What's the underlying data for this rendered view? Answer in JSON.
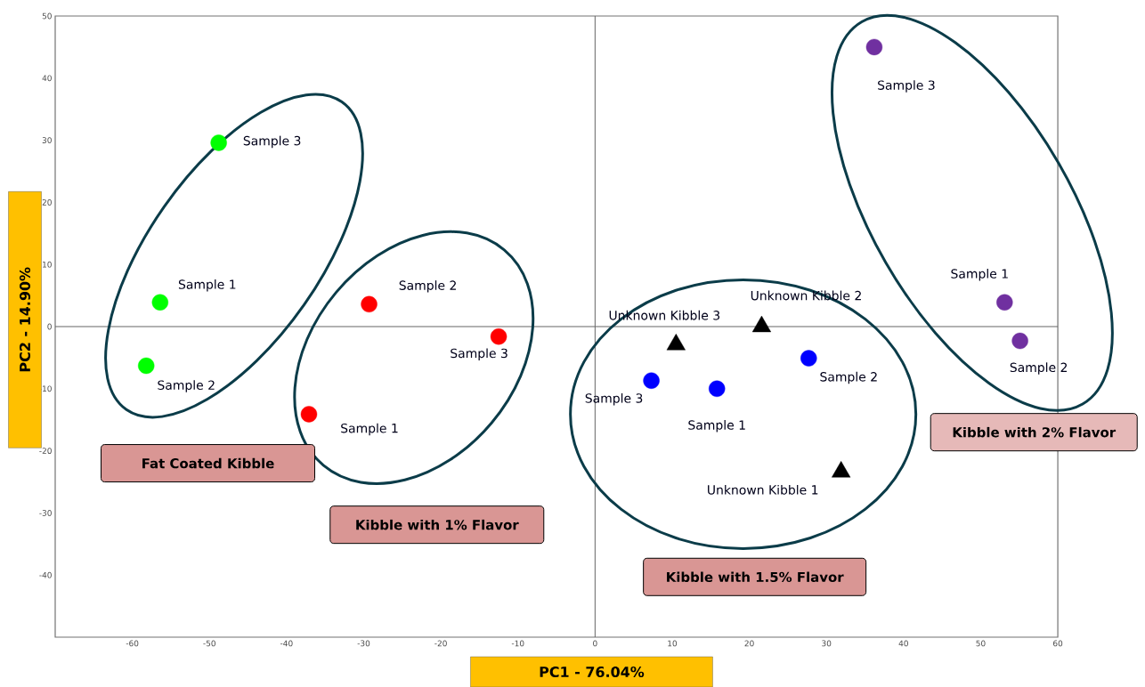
{
  "chart_data": {
    "type": "scatter",
    "xlabel": "PC1 - 76.04%",
    "ylabel": "PC2 - 14.90%",
    "xlim": [
      -70,
      60
    ],
    "ylim": [
      -50,
      50
    ],
    "xticks": [
      -60,
      -50,
      -40,
      -30,
      -20,
      -10,
      0,
      10,
      20,
      30,
      40,
      50,
      60
    ],
    "yticks": [
      -40,
      -30,
      -20,
      -10,
      0,
      10,
      20,
      30,
      40,
      50
    ],
    "marker": "circle",
    "series": [
      {
        "color": "#00ff00",
        "x": [
          -48.8,
          -56.4,
          -58.2
        ],
        "values": [
          29.6,
          3.9,
          -6.3
        ]
      },
      {
        "color": "#ff0000",
        "x": [
          -29.3,
          -12.5,
          -37.1
        ],
        "values": [
          3.6,
          -1.6,
          -14.1
        ]
      },
      {
        "color": "#0000ff",
        "x": [
          7.3,
          15.8,
          27.7
        ],
        "values": [
          -8.7,
          -10.0,
          -5.1
        ]
      },
      {
        "color": "#7030a0",
        "x": [
          36.2,
          53.1,
          55.1
        ],
        "values": [
          45.0,
          3.9,
          -2.3
        ]
      },
      {
        "color": "#000000",
        "marker": "triangle",
        "x": [
          10.5,
          21.6,
          31.9
        ],
        "values": [
          -2.9,
          0.0,
          -23.4
        ]
      }
    ],
    "annotations": [
      {
        "text": "Sample 3",
        "x": -48.8,
        "y": 29.6
      },
      {
        "text": "Sample 1",
        "x": -56.4,
        "y": 3.9
      },
      {
        "text": "Sample 2",
        "x": -58.2,
        "y": -6.3
      },
      {
        "text": "Sample 2",
        "x": -29.3,
        "y": 3.6
      },
      {
        "text": "Sample 3",
        "x": -12.5,
        "y": -1.6
      },
      {
        "text": "Sample 1",
        "x": -37.1,
        "y": -14.1
      },
      {
        "text": "Sample 3",
        "x": 7.3,
        "y": -8.7
      },
      {
        "text": "Sample 1",
        "x": 15.8,
        "y": -10.0
      },
      {
        "text": "Sample 2",
        "x": 27.7,
        "y": -5.1
      },
      {
        "text": "Sample 3",
        "x": 36.2,
        "y": 45.0
      },
      {
        "text": "Sample 1",
        "x": 53.1,
        "y": 3.9
      },
      {
        "text": "Sample 2",
        "x": 55.1,
        "y": -2.3
      },
      {
        "text": "Unknown Kibble 3",
        "x": 10.5,
        "y": -2.9
      },
      {
        "text": "Unknown Kibble 2",
        "x": 21.6,
        "y": 0.0
      },
      {
        "text": "Unknown Kibble 1",
        "x": 31.9,
        "y": -23.4
      },
      "Fat Coated Kibble",
      "Kibble with 1% Flavor",
      "Kibble with 1.5% Flavor",
      "Kibble with 2% Flavor"
    ]
  }
}
